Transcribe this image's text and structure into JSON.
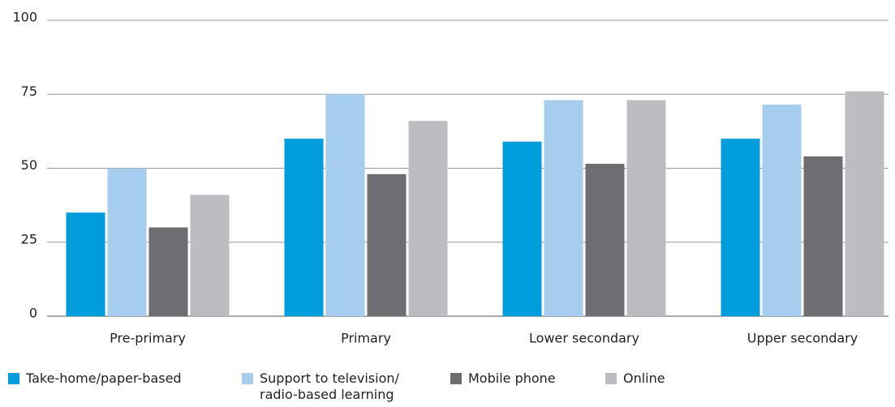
{
  "chart_data": {
    "type": "bar",
    "categories": [
      "Pre-primary",
      "Primary",
      "Lower secondary",
      "Upper secondary"
    ],
    "series": [
      {
        "name": "Take-home/paper-based",
        "color": "#009ddc",
        "values": [
          35,
          60,
          59,
          60
        ]
      },
      {
        "name": "Support to television/ radio-based learning",
        "color": "#a6cdee",
        "values": [
          50,
          75,
          73,
          71.5
        ]
      },
      {
        "name": "Mobile phone",
        "color": "#6d6e71",
        "values": [
          30,
          48,
          51.5,
          54
        ]
      },
      {
        "name": "Online",
        "color": "#bcbdc0",
        "values": [
          41,
          66,
          73,
          76
        ]
      }
    ],
    "ylim": [
      0,
      100
    ],
    "yticks": [
      0,
      25,
      50,
      75,
      100
    ],
    "grid": true
  }
}
